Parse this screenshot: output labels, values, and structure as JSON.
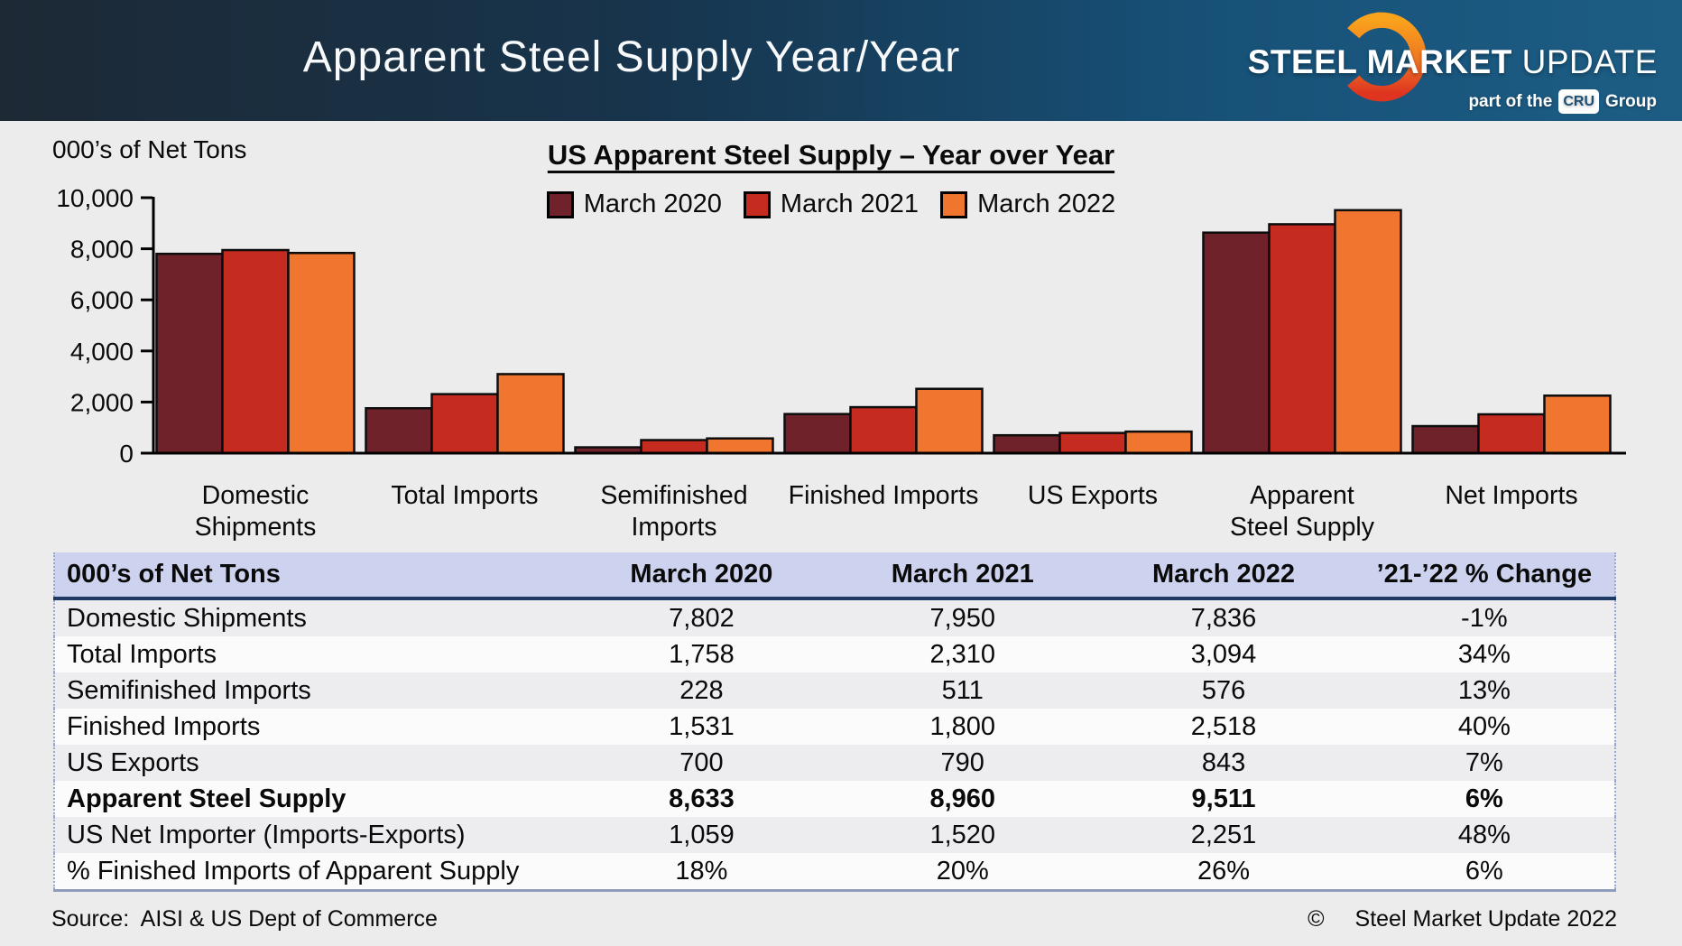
{
  "header": {
    "title": "Apparent Steel Supply Year/Year",
    "logo": {
      "brand_steel": "STEEL",
      "brand_market": "MARKET",
      "brand_update": "UPDATE",
      "tagline_prefix": "part of the",
      "tagline_box": "CRU",
      "tagline_suffix": "Group"
    }
  },
  "chart_data": {
    "type": "bar",
    "title": "US Apparent Steel Supply – Year over Year",
    "units_label": "000’s of Net Tons",
    "categories": [
      [
        "Domestic",
        "Shipments"
      ],
      [
        "Total Imports"
      ],
      [
        "Semifinished",
        "Imports"
      ],
      [
        "Finished Imports"
      ],
      [
        "US Exports"
      ],
      [
        "Apparent",
        "Steel Supply"
      ],
      [
        "Net Imports"
      ]
    ],
    "series": [
      {
        "name": "March 2020",
        "color": "#6f2229",
        "values": [
          7802,
          1758,
          228,
          1531,
          700,
          8633,
          1059
        ]
      },
      {
        "name": "March 2021",
        "color": "#c52b1e",
        "values": [
          7950,
          2310,
          511,
          1800,
          790,
          8960,
          1520
        ]
      },
      {
        "name": "March 2022",
        "color": "#f0752f",
        "values": [
          7836,
          3094,
          576,
          2518,
          843,
          9511,
          2251
        ]
      }
    ],
    "ylim": [
      0,
      10000
    ],
    "ytick_step": 2000,
    "legend_position": "top",
    "grid": false,
    "bar_stroke_color": "#0d0d0d",
    "axis_color": "#000000"
  },
  "table": {
    "columns": [
      "000’s of Net Tons",
      "March 2020",
      "March 2021",
      "March 2022",
      "’21-’22 % Change"
    ],
    "rows": [
      {
        "label": "Domestic Shipments",
        "values": [
          "7,802",
          "7,950",
          "7,836",
          "-1%"
        ],
        "bold": false
      },
      {
        "label": "Total Imports",
        "values": [
          "1,758",
          "2,310",
          "3,094",
          "34%"
        ],
        "bold": false
      },
      {
        "label": "Semifinished Imports",
        "values": [
          "228",
          "511",
          "576",
          "13%"
        ],
        "bold": false
      },
      {
        "label": "Finished Imports",
        "values": [
          "1,531",
          "1,800",
          "2,518",
          "40%"
        ],
        "bold": false
      },
      {
        "label": "US Exports",
        "values": [
          "700",
          "790",
          "843",
          "7%"
        ],
        "bold": false
      },
      {
        "label": "Apparent Steel Supply",
        "values": [
          "8,633",
          "8,960",
          "9,511",
          "6%"
        ],
        "bold": true
      },
      {
        "label": "US Net Importer (Imports-Exports)",
        "values": [
          "1,059",
          "1,520",
          "2,251",
          "48%"
        ],
        "bold": false
      },
      {
        "label": "% Finished Imports of Apparent Supply",
        "values": [
          "18%",
          "20%",
          "26%",
          "6%"
        ],
        "bold": false
      }
    ]
  },
  "footer": {
    "source": "Source:  AISI & US Dept of Commerce",
    "copyright_symbol": "©",
    "copyright_text": "Steel Market Update 2022"
  }
}
